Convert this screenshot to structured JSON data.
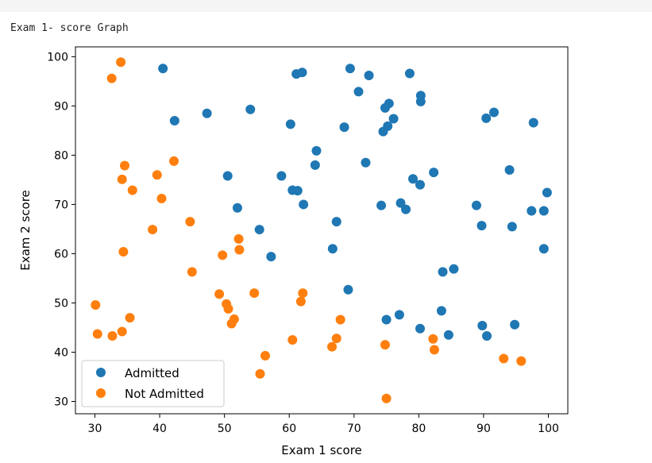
{
  "output": {
    "caption": "Exam 1- score Graph"
  },
  "colors": {
    "admitted": "#1f77b4",
    "not_admitted": "#ff7f0e"
  },
  "chart_data": {
    "type": "scatter",
    "title": "",
    "xlabel": "Exam 1 score",
    "ylabel": "Exam 2 score",
    "xlim": [
      27,
      103
    ],
    "ylim": [
      27.5,
      102
    ],
    "xticks": [
      30,
      40,
      50,
      60,
      70,
      80,
      90,
      100
    ],
    "yticks": [
      30,
      40,
      50,
      60,
      70,
      80,
      90,
      100
    ],
    "grid": false,
    "legend_position": "lower-left",
    "series": [
      {
        "name": "Admitted",
        "color": "#1f77b4",
        "points": [
          [
            40.5,
            97.6
          ],
          [
            61.1,
            96.5
          ],
          [
            62.0,
            96.8
          ],
          [
            69.4,
            97.6
          ],
          [
            72.3,
            96.2
          ],
          [
            78.6,
            96.6
          ],
          [
            70.7,
            92.9
          ],
          [
            80.3,
            92.1
          ],
          [
            80.3,
            90.9
          ],
          [
            75.4,
            90.5
          ],
          [
            74.8,
            89.6
          ],
          [
            54.0,
            89.3
          ],
          [
            47.3,
            88.5
          ],
          [
            91.6,
            88.7
          ],
          [
            90.4,
            87.5
          ],
          [
            76.1,
            87.4
          ],
          [
            42.3,
            87.0
          ],
          [
            60.2,
            86.3
          ],
          [
            97.7,
            86.6
          ],
          [
            68.5,
            85.7
          ],
          [
            75.2,
            85.9
          ],
          [
            74.5,
            84.8
          ],
          [
            64.2,
            80.9
          ],
          [
            82.3,
            76.5
          ],
          [
            71.8,
            78.5
          ],
          [
            64.0,
            78.0
          ],
          [
            94.0,
            77.0
          ],
          [
            58.8,
            75.8
          ],
          [
            50.5,
            75.8
          ],
          [
            79.1,
            75.2
          ],
          [
            80.2,
            74.0
          ],
          [
            60.5,
            72.9
          ],
          [
            61.3,
            72.8
          ],
          [
            99.8,
            72.4
          ],
          [
            62.2,
            70.0
          ],
          [
            74.2,
            69.8
          ],
          [
            77.2,
            70.3
          ],
          [
            88.9,
            69.8
          ],
          [
            97.4,
            68.7
          ],
          [
            99.3,
            68.7
          ],
          [
            52.0,
            69.3
          ],
          [
            78.0,
            69.0
          ],
          [
            67.3,
            66.5
          ],
          [
            89.7,
            65.7
          ],
          [
            94.4,
            65.5
          ],
          [
            55.4,
            64.9
          ],
          [
            66.7,
            61.0
          ],
          [
            99.3,
            61.0
          ],
          [
            57.2,
            59.4
          ],
          [
            85.4,
            56.9
          ],
          [
            83.7,
            56.3
          ],
          [
            69.1,
            52.7
          ],
          [
            83.5,
            48.4
          ],
          [
            77.0,
            47.6
          ],
          [
            75.0,
            46.6
          ],
          [
            94.8,
            45.6
          ],
          [
            89.8,
            45.4
          ],
          [
            80.2,
            44.8
          ],
          [
            84.6,
            43.5
          ],
          [
            90.5,
            43.3
          ]
        ]
      },
      {
        "name": "Not Admitted",
        "color": "#ff7f0e",
        "points": [
          [
            34.0,
            98.9
          ],
          [
            32.6,
            95.6
          ],
          [
            34.6,
            77.9
          ],
          [
            42.2,
            78.8
          ],
          [
            39.6,
            76.0
          ],
          [
            34.2,
            75.1
          ],
          [
            35.8,
            72.9
          ],
          [
            40.3,
            71.2
          ],
          [
            44.7,
            66.5
          ],
          [
            38.9,
            64.9
          ],
          [
            52.2,
            63.0
          ],
          [
            52.3,
            60.8
          ],
          [
            49.7,
            59.7
          ],
          [
            34.4,
            60.4
          ],
          [
            45.0,
            56.3
          ],
          [
            49.2,
            51.8
          ],
          [
            54.6,
            52.0
          ],
          [
            62.1,
            52.0
          ],
          [
            30.1,
            49.6
          ],
          [
            61.8,
            50.3
          ],
          [
            50.3,
            49.8
          ],
          [
            50.6,
            48.8
          ],
          [
            35.4,
            47.0
          ],
          [
            67.9,
            46.6
          ],
          [
            51.5,
            46.7
          ],
          [
            51.1,
            45.8
          ],
          [
            34.2,
            44.2
          ],
          [
            30.4,
            43.7
          ],
          [
            32.7,
            43.3
          ],
          [
            82.2,
            42.7
          ],
          [
            60.5,
            42.5
          ],
          [
            67.3,
            42.8
          ],
          [
            74.8,
            41.5
          ],
          [
            66.6,
            41.1
          ],
          [
            82.4,
            40.5
          ],
          [
            56.3,
            39.3
          ],
          [
            93.1,
            38.7
          ],
          [
            95.8,
            38.2
          ],
          [
            55.5,
            35.6
          ],
          [
            75.0,
            30.6
          ]
        ]
      }
    ]
  }
}
